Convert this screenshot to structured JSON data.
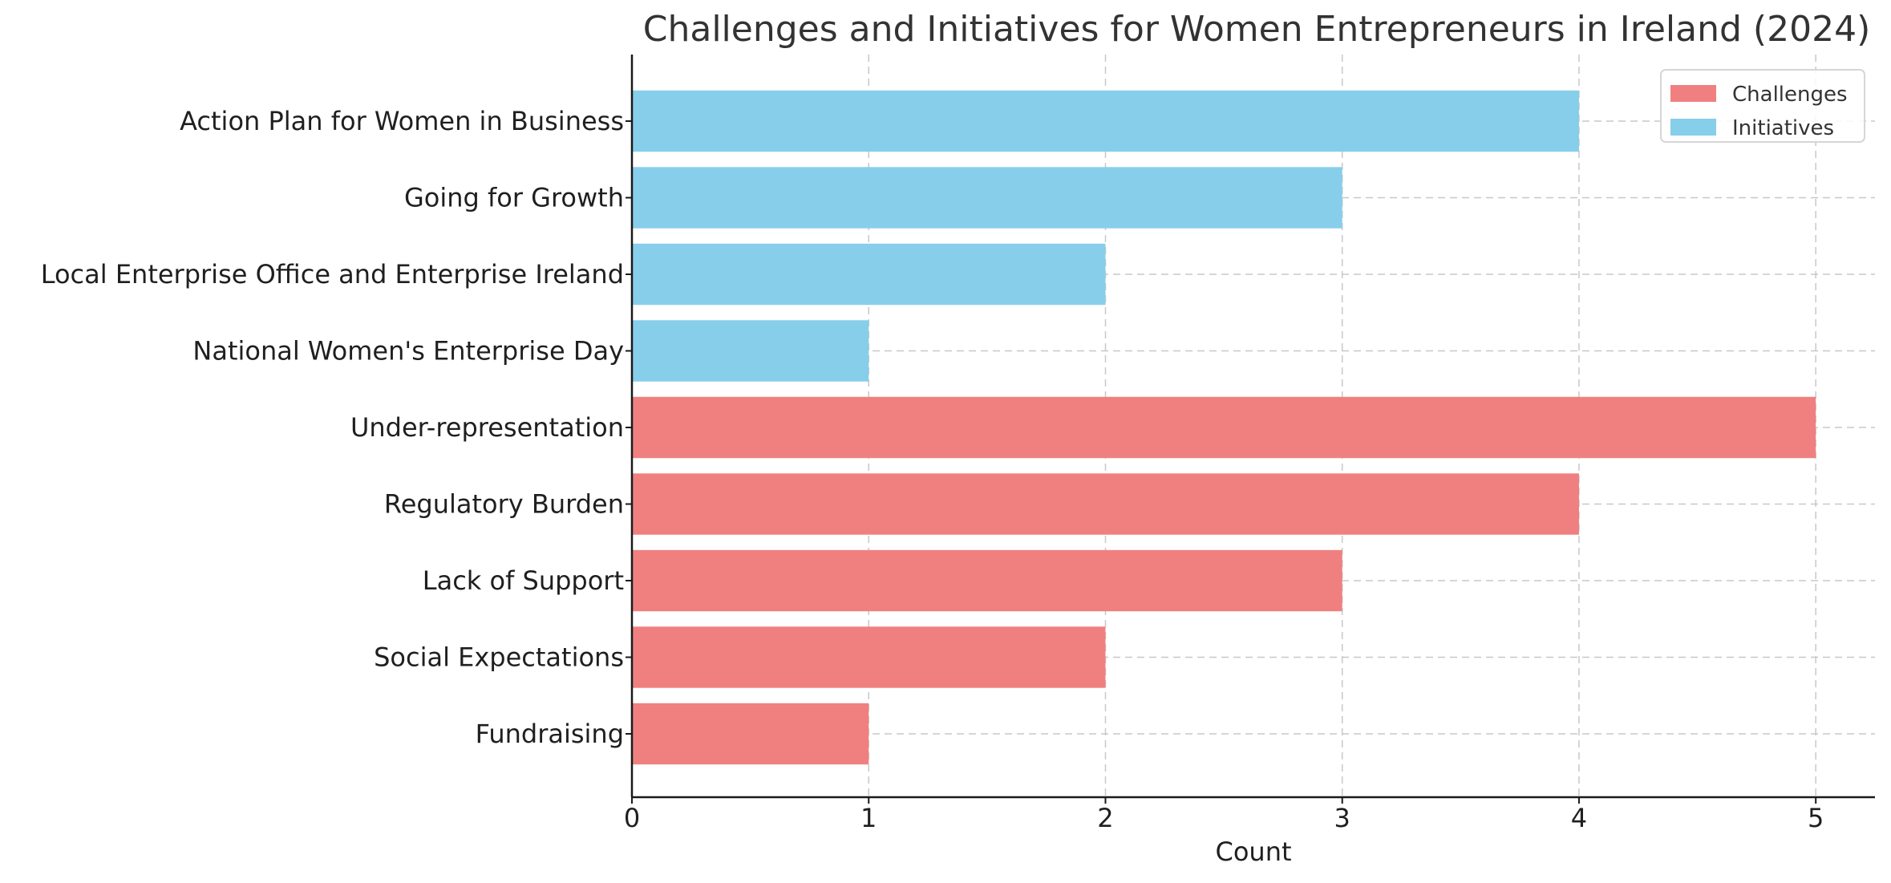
{
  "chart_data": {
    "type": "bar",
    "orientation": "horizontal",
    "title": "Challenges and Initiatives for Women Entrepreneurs in Ireland (2024)",
    "xlabel": "Count",
    "ylabel": "",
    "xlim": [
      0,
      5.25
    ],
    "xticks": [
      0,
      1,
      2,
      3,
      4,
      5
    ],
    "grid": true,
    "legend_position": "top-right",
    "series": [
      {
        "name": "Challenges",
        "color": "#F08080",
        "categories": [
          "Fundraising",
          "Social Expectations",
          "Lack of Support",
          "Regulatory Burden",
          "Under-representation"
        ],
        "values": [
          1,
          2,
          3,
          4,
          5
        ]
      },
      {
        "name": "Initiatives",
        "color": "#87CEEB",
        "categories": [
          "National Women's Enterprise Day",
          "Local Enterprise Office and Enterprise Ireland",
          "Going for Growth",
          "Action Plan for Women in Business"
        ],
        "values": [
          1,
          2,
          3,
          4
        ]
      }
    ],
    "legend": [
      {
        "label": "Challenges",
        "color": "#F08080"
      },
      {
        "label": "Initiatives",
        "color": "#87CEEB"
      }
    ]
  }
}
